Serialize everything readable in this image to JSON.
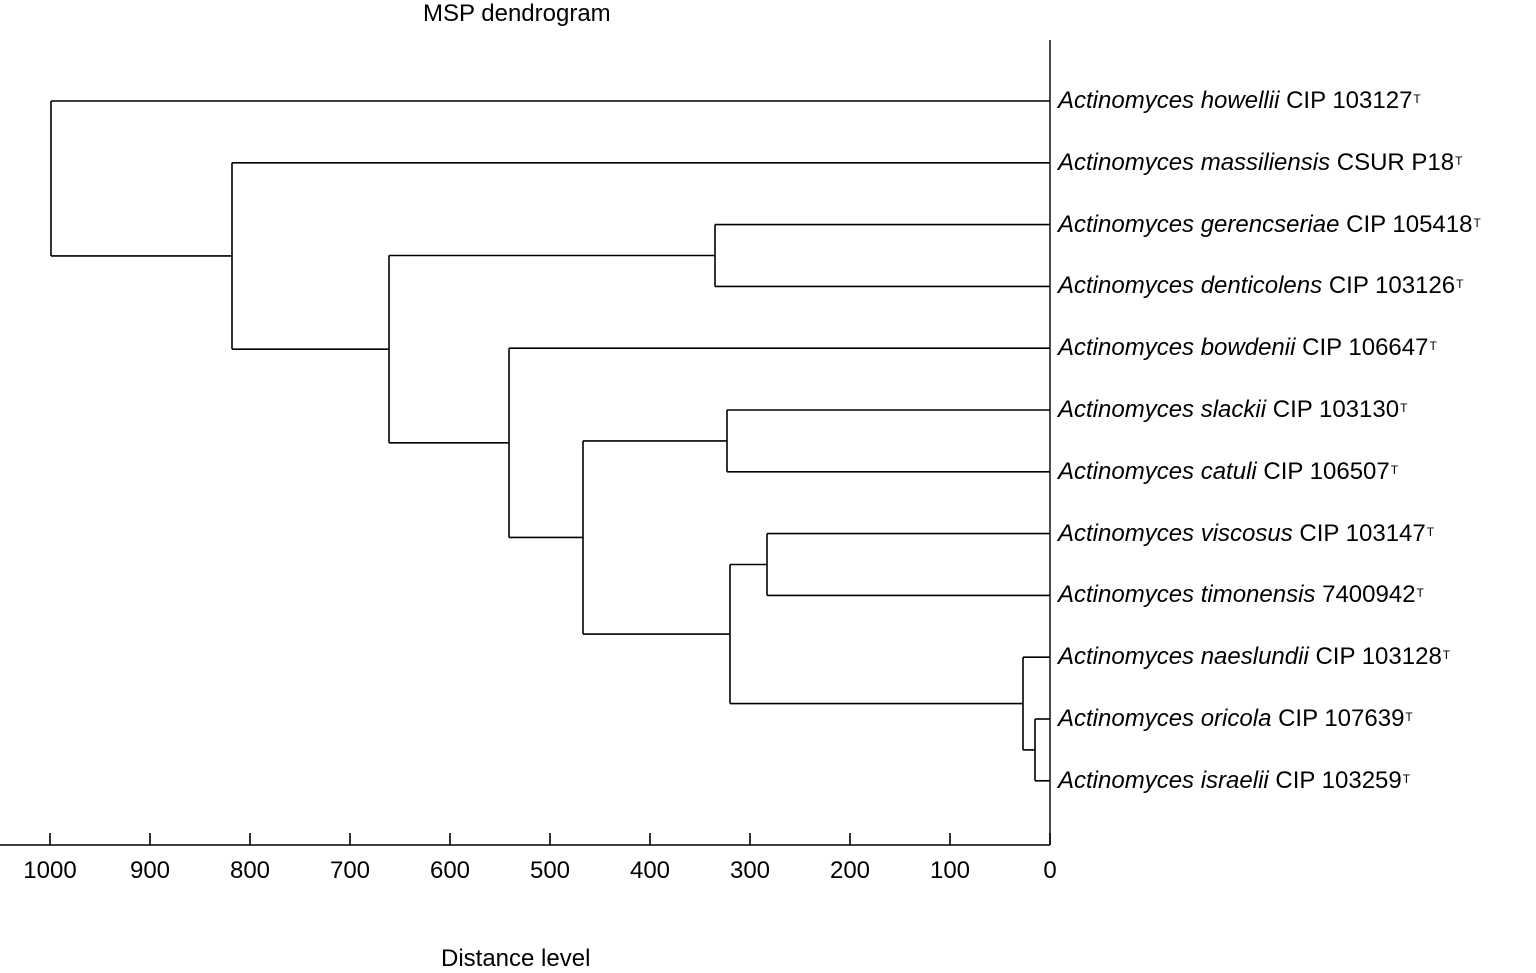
{
  "title": "MSP dendrogram",
  "axis": {
    "xlabel": "Distance level",
    "ticks": [
      "1000",
      "900",
      "800",
      "700",
      "600",
      "500",
      "400",
      "300",
      "200",
      "100",
      "0"
    ],
    "tick_values": [
      1000,
      900,
      800,
      700,
      600,
      500,
      400,
      300,
      200,
      100,
      0
    ],
    "range": [
      1000,
      0
    ]
  },
  "leaves": [
    {
      "species": "Actinomyces howellii",
      "strain": "CIP 103127",
      "sup": "T"
    },
    {
      "species": "Actinomyces massiliensis",
      "strain": "CSUR P18",
      "sup": "T"
    },
    {
      "species": "Actinomyces gerencseriae",
      "strain": "CIP 105418",
      "sup": "T"
    },
    {
      "species": "Actinomyces denticolens",
      "strain": "CIP 103126",
      "sup": "T"
    },
    {
      "species": "Actinomyces bowdenii",
      "strain": "CIP 106647",
      "sup": "T"
    },
    {
      "species": "Actinomyces slackii",
      "strain": "CIP 103130",
      "sup": "T"
    },
    {
      "species": "Actinomyces catuli",
      "strain": "CIP 106507",
      "sup": "T"
    },
    {
      "species": "Actinomyces viscosus",
      "strain": "CIP 103147",
      "sup": "T"
    },
    {
      "species": "Actinomyces timonensis",
      "strain": "7400942",
      "sup": "T"
    },
    {
      "species": "Actinomyces naeslundii",
      "strain": "CIP 103128",
      "sup": "T"
    },
    {
      "species": "Actinomyces oricola",
      "strain": "CIP 107639",
      "sup": "T"
    },
    {
      "species": "Actinomyces israelii",
      "strain": "CIP 103259",
      "sup": "T"
    }
  ],
  "chart_data": {
    "type": "dendrogram",
    "title": "MSP dendrogram",
    "xlabel": "Distance level",
    "xlim": [
      1000,
      0
    ],
    "leaf_order": [
      "Actinomyces howellii CIP 103127",
      "Actinomyces massiliensis CSUR P18",
      "Actinomyces gerencseriae CIP 105418",
      "Actinomyces denticolens CIP 103126",
      "Actinomyces bowdenii CIP 106647",
      "Actinomyces slackii CIP 103130",
      "Actinomyces catuli CIP 106507",
      "Actinomyces viscosus CIP 103147",
      "Actinomyces timonensis 7400942",
      "Actinomyces naeslundii CIP 103128",
      "Actinomyces oricola CIP 107639",
      "Actinomyces israelii CIP 103259"
    ],
    "merges": [
      {
        "id": "n1",
        "children": [
          10,
          11
        ],
        "distance": 15
      },
      {
        "id": "n2",
        "children": [
          9,
          "n1"
        ],
        "distance": 27
      },
      {
        "id": "n3",
        "children": [
          7,
          8
        ],
        "distance": 283
      },
      {
        "id": "n4",
        "children": [
          "n3",
          "n2"
        ],
        "distance": 320
      },
      {
        "id": "n5",
        "children": [
          5,
          6
        ],
        "distance": 323
      },
      {
        "id": "n6",
        "children": [
          "n5",
          "n4"
        ],
        "distance": 467
      },
      {
        "id": "n7",
        "children": [
          4,
          "n6"
        ],
        "distance": 541
      },
      {
        "id": "n8",
        "children": [
          2,
          3
        ],
        "distance": 335
      },
      {
        "id": "n9",
        "children": [
          "n8",
          "n7"
        ],
        "distance": 661
      },
      {
        "id": "n10",
        "children": [
          1,
          "n9"
        ],
        "distance": 818
      },
      {
        "id": "n11",
        "children": [
          0,
          "n10"
        ],
        "distance": 999
      }
    ]
  }
}
